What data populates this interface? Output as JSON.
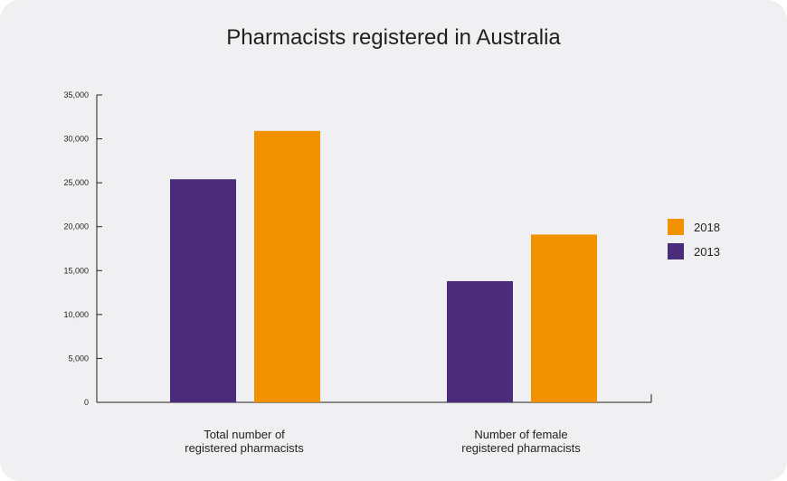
{
  "chart_data": {
    "type": "bar",
    "title": "Pharmacists registered in Australia",
    "categories": [
      [
        "Total number of",
        "registered pharmacists"
      ],
      [
        "Number of female",
        "registered pharmacists"
      ]
    ],
    "series": [
      {
        "name": "2013",
        "color": "#4a2c7a",
        "values": [
          25400,
          13800
        ]
      },
      {
        "name": "2018",
        "color": "#f39200",
        "values": [
          30900,
          19100
        ]
      }
    ],
    "legend_order": [
      "2018",
      "2013"
    ],
    "legend_position": "right",
    "yticks": [
      "0",
      "5,000",
      "10,000",
      "15,000",
      "20,000",
      "25,000",
      "30,000",
      "35,000"
    ],
    "ylim": [
      0,
      35000
    ],
    "grid": false
  }
}
